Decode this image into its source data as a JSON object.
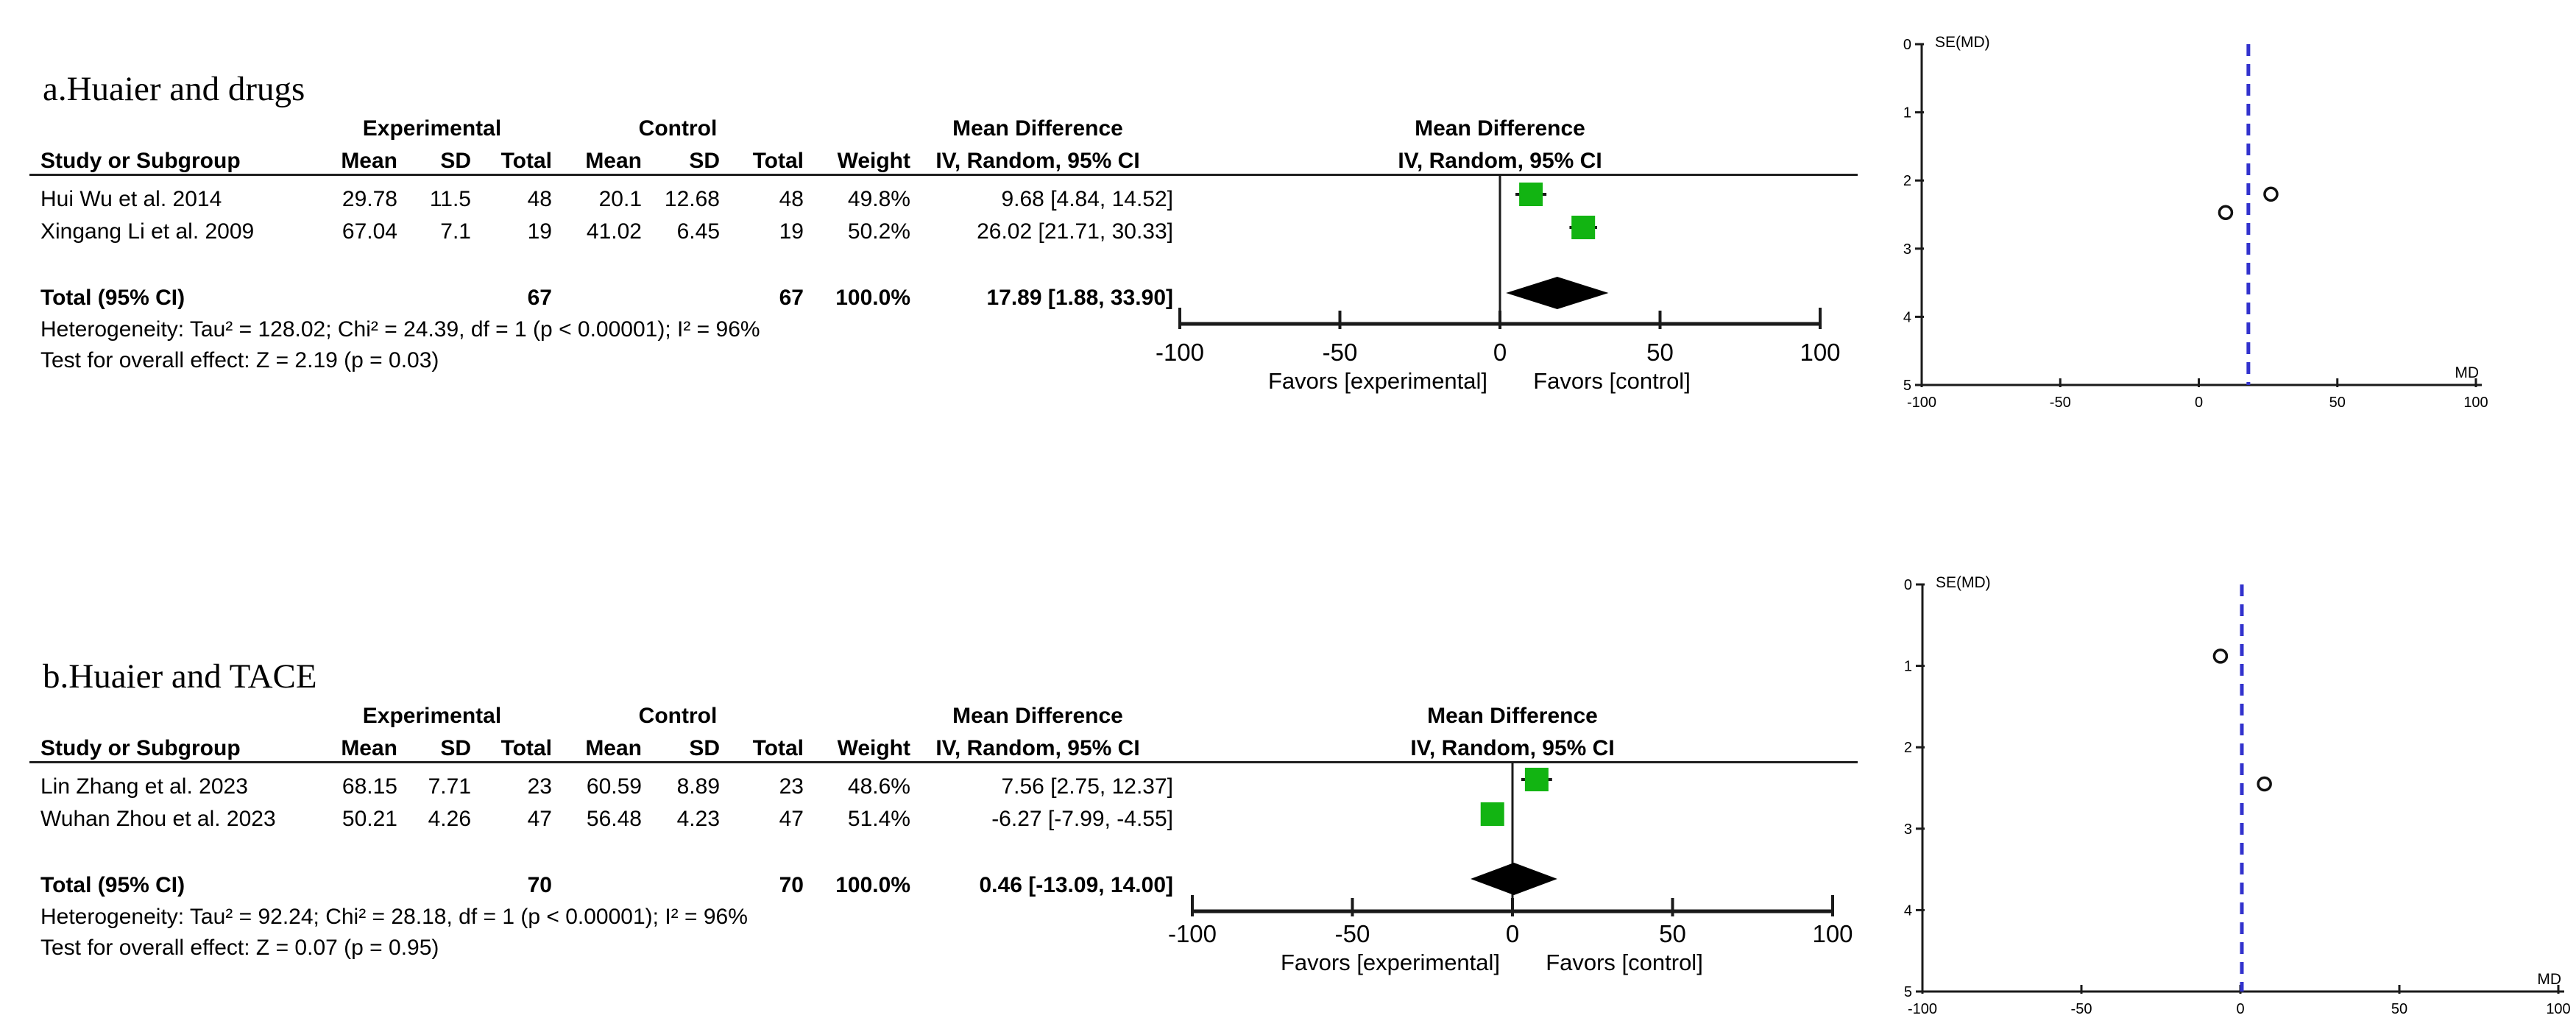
{
  "panels": [
    {
      "key": "a",
      "title": "a.Huaier and drugs",
      "table": {
        "group_exp": "Experimental",
        "group_ctl": "Control",
        "h_study": "Study or Subgroup",
        "h_mean": "Mean",
        "h_sd": "SD",
        "h_total": "Total",
        "h_mean2": "Mean",
        "h_sd2": "SD",
        "h_total2": "Total",
        "h_weight": "Weight",
        "md_col_title": "Mean Difference",
        "md_col_sub": "IV, Random, 95% CI",
        "plot_col_title": "Mean Difference",
        "plot_col_sub": "IV, Random, 95% CI",
        "rows": [
          {
            "study": "Hui Wu et al. 2014",
            "mean": "29.78",
            "sd": "11.5",
            "total": "48",
            "mean2": "20.1",
            "sd2": "12.68",
            "total2": "48",
            "weight": "49.8%",
            "ci": "9.68 [4.84, 14.52]"
          },
          {
            "study": "Xingang Li et al. 2009",
            "mean": "67.04",
            "sd": "7.1",
            "total": "19",
            "mean2": "41.02",
            "sd2": "6.45",
            "total2": "19",
            "weight": "50.2%",
            "ci": "26.02 [21.71, 30.33]"
          }
        ],
        "total_row": {
          "label": "Total (95% CI)",
          "total": "67",
          "total2": "67",
          "weight": "100.0%",
          "ci": "17.89 [1.88, 33.90]"
        },
        "heterogeneity": "Heterogeneity: Tau² = 128.02; Chi² = 24.39, df = 1 (p < 0.00001); I² = 96%",
        "overall": "Test for overall effect: Z = 2.19 (p = 0.03)"
      }
    },
    {
      "key": "b",
      "title": "b.Huaier and TACE",
      "table": {
        "group_exp": "Experimental",
        "group_ctl": "Control",
        "h_study": "Study or Subgroup",
        "h_mean": "Mean",
        "h_sd": "SD",
        "h_total": "Total",
        "h_mean2": "Mean",
        "h_sd2": "SD",
        "h_total2": "Total",
        "h_weight": "Weight",
        "md_col_title": "Mean Difference",
        "md_col_sub": "IV, Random, 95% CI",
        "plot_col_title": "Mean Difference",
        "plot_col_sub": "IV, Random, 95% CI",
        "rows": [
          {
            "study": "Lin Zhang et al. 2023",
            "mean": "68.15",
            "sd": "7.71",
            "total": "23",
            "mean2": "60.59",
            "sd2": "8.89",
            "total2": "23",
            "weight": "48.6%",
            "ci": "7.56 [2.75, 12.37]"
          },
          {
            "study": "Wuhan Zhou et al. 2023",
            "mean": "50.21",
            "sd": "4.26",
            "total": "47",
            "mean2": "56.48",
            "sd2": "4.23",
            "total2": "47",
            "weight": "51.4%",
            "ci": "-6.27 [-7.99, -4.55]"
          }
        ],
        "total_row": {
          "label": "Total (95% CI)",
          "total": "70",
          "total2": "70",
          "weight": "100.0%",
          "ci": "0.46 [-13.09, 14.00]"
        },
        "heterogeneity": "Heterogeneity: Tau² = 92.24; Chi² = 28.18, df = 1 (p < 0.00001); I² = 96%",
        "overall": "Test for overall effect: Z = 0.07 (p = 0.95)"
      }
    }
  ],
  "chart_data": [
    {
      "type": "forest",
      "panel": "a",
      "title": "Mean Difference",
      "subtitle": "IV, Random, 95% CI",
      "xlim": [
        -100,
        100
      ],
      "x_ticks": [
        -100,
        -50,
        0,
        50,
        100
      ],
      "favors_left": "Favors [experimental]",
      "favors_right": "Favors [control]",
      "marker_color": "#12b412",
      "studies": [
        {
          "name": "Hui Wu et al. 2014",
          "md": 9.68,
          "ci_low": 4.84,
          "ci_high": 14.52,
          "weight_pct": 49.8
        },
        {
          "name": "Xingang Li et al. 2009",
          "md": 26.02,
          "ci_low": 21.71,
          "ci_high": 30.33,
          "weight_pct": 50.2
        }
      ],
      "total": {
        "md": 17.89,
        "ci_low": 1.88,
        "ci_high": 33.9
      }
    },
    {
      "type": "scatter",
      "panel": "a",
      "kind": "funnel",
      "ylabel": "SE(MD)",
      "xlabel": "MD",
      "xlim": [
        -100,
        100
      ],
      "ylim": [
        0,
        5
      ],
      "x_ticks": [
        -100,
        -50,
        0,
        50,
        100
      ],
      "y_ticks": [
        0,
        1,
        2,
        3,
        4,
        5
      ],
      "ref_line_x": 17.89,
      "ref_line_color": "#3232cd",
      "points": [
        {
          "x": 9.68,
          "y": 2.47
        },
        {
          "x": 26.02,
          "y": 2.2
        }
      ]
    },
    {
      "type": "forest",
      "panel": "b",
      "title": "Mean Difference",
      "subtitle": "IV, Random, 95% CI",
      "xlim": [
        -100,
        100
      ],
      "x_ticks": [
        -100,
        -50,
        0,
        50,
        100
      ],
      "favors_left": "Favors [experimental]",
      "favors_right": "Favors [control]",
      "marker_color": "#12b412",
      "studies": [
        {
          "name": "Lin Zhang et al. 2023",
          "md": 7.56,
          "ci_low": 2.75,
          "ci_high": 12.37,
          "weight_pct": 48.6
        },
        {
          "name": "Wuhan Zhou et al. 2023",
          "md": -6.27,
          "ci_low": -7.99,
          "ci_high": -4.55,
          "weight_pct": 51.4
        }
      ],
      "total": {
        "md": 0.46,
        "ci_low": -13.09,
        "ci_high": 14.0
      }
    },
    {
      "type": "scatter",
      "panel": "b",
      "kind": "funnel",
      "ylabel": "SE(MD)",
      "xlabel": "MD",
      "xlim": [
        -100,
        100
      ],
      "ylim": [
        0,
        5
      ],
      "x_ticks": [
        -100,
        -50,
        0,
        50,
        100
      ],
      "y_ticks": [
        0,
        1,
        2,
        3,
        4,
        5
      ],
      "ref_line_x": 0.46,
      "ref_line_color": "#3232cd",
      "points": [
        {
          "x": -6.27,
          "y": 0.88
        },
        {
          "x": 7.56,
          "y": 2.45
        }
      ]
    }
  ]
}
